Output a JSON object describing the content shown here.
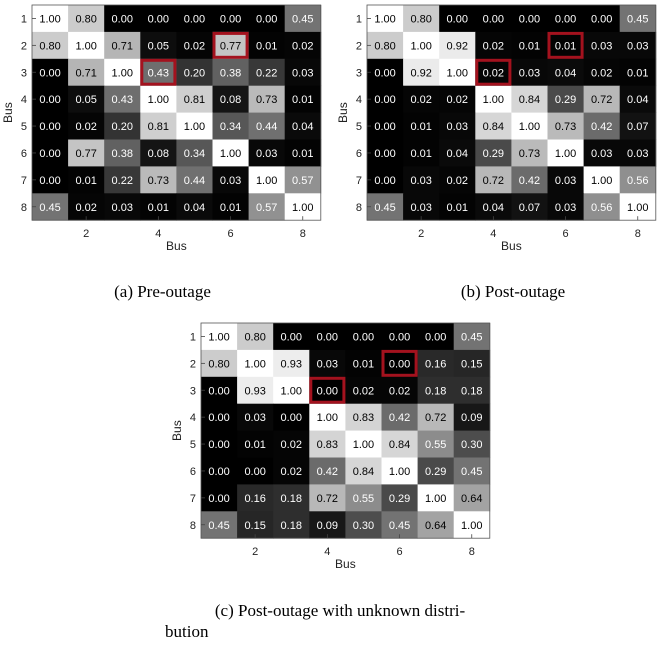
{
  "chart_data": [
    {
      "type": "heatmap",
      "caption": "(a) Pre-outage",
      "xlabel": "Bus",
      "ylabel": "Bus",
      "x_ticks": [
        "2",
        "4",
        "6",
        "8"
      ],
      "y_ticks": [
        "1",
        "2",
        "3",
        "4",
        "5",
        "6",
        "7",
        "8"
      ],
      "color_scale": "grayscale, 0.00 = black, 1.00 = white",
      "highlight_color": "#a3121e",
      "highlighted_cells": [
        {
          "row": 2,
          "col": 6
        },
        {
          "row": 3,
          "col": 4
        }
      ],
      "values": [
        [
          1.0,
          0.8,
          0.0,
          0.0,
          0.0,
          0.0,
          0.0,
          0.45
        ],
        [
          0.8,
          1.0,
          0.71,
          0.05,
          0.02,
          0.77,
          0.01,
          0.02
        ],
        [
          0.0,
          0.71,
          1.0,
          0.43,
          0.2,
          0.38,
          0.22,
          0.03
        ],
        [
          0.0,
          0.05,
          0.43,
          1.0,
          0.81,
          0.08,
          0.73,
          0.01
        ],
        [
          0.0,
          0.02,
          0.2,
          0.81,
          1.0,
          0.34,
          0.44,
          0.04
        ],
        [
          0.0,
          0.77,
          0.38,
          0.08,
          0.34,
          1.0,
          0.03,
          0.01
        ],
        [
          0.0,
          0.01,
          0.22,
          0.73,
          0.44,
          0.03,
          1.0,
          0.57
        ],
        [
          0.45,
          0.02,
          0.03,
          0.01,
          0.04,
          0.01,
          0.57,
          1.0
        ]
      ]
    },
    {
      "type": "heatmap",
      "caption": "(b) Post-outage",
      "xlabel": "Bus",
      "ylabel": "Bus",
      "x_ticks": [
        "2",
        "4",
        "6",
        "8"
      ],
      "y_ticks": [
        "1",
        "2",
        "3",
        "4",
        "5",
        "6",
        "7",
        "8"
      ],
      "color_scale": "grayscale, 0.00 = black, 1.00 = white",
      "highlight_color": "#a3121e",
      "highlighted_cells": [
        {
          "row": 2,
          "col": 6
        },
        {
          "row": 3,
          "col": 4
        }
      ],
      "values": [
        [
          1.0,
          0.8,
          0.0,
          0.0,
          0.0,
          0.0,
          0.0,
          0.45
        ],
        [
          0.8,
          1.0,
          0.92,
          0.02,
          0.01,
          0.01,
          0.03,
          0.03
        ],
        [
          0.0,
          0.92,
          1.0,
          0.02,
          0.03,
          0.04,
          0.02,
          0.01
        ],
        [
          0.0,
          0.02,
          0.02,
          1.0,
          0.84,
          0.29,
          0.72,
          0.04
        ],
        [
          0.0,
          0.01,
          0.03,
          0.84,
          1.0,
          0.73,
          0.42,
          0.07
        ],
        [
          0.0,
          0.01,
          0.04,
          0.29,
          0.73,
          1.0,
          0.03,
          0.03
        ],
        [
          0.0,
          0.03,
          0.02,
          0.72,
          0.42,
          0.03,
          1.0,
          0.56
        ],
        [
          0.45,
          0.03,
          0.01,
          0.04,
          0.07,
          0.03,
          0.56,
          1.0
        ]
      ]
    },
    {
      "type": "heatmap",
      "caption": "(c) Post-outage with unknown distri-bution",
      "caption_lines": [
        "(c) Post-outage with unknown distri-",
        "bution"
      ],
      "xlabel": "Bus",
      "ylabel": "Bus",
      "x_ticks": [
        "2",
        "4",
        "6",
        "8"
      ],
      "y_ticks": [
        "1",
        "2",
        "3",
        "4",
        "5",
        "6",
        "7",
        "8"
      ],
      "color_scale": "grayscale, 0.00 = black, 1.00 = white",
      "highlight_color": "#a3121e",
      "highlighted_cells": [
        {
          "row": 2,
          "col": 6
        },
        {
          "row": 3,
          "col": 4
        }
      ],
      "values": [
        [
          1.0,
          0.8,
          0.0,
          0.0,
          0.0,
          0.0,
          0.0,
          0.45
        ],
        [
          0.8,
          1.0,
          0.93,
          0.03,
          0.01,
          0.0,
          0.16,
          0.15
        ],
        [
          0.0,
          0.93,
          1.0,
          0.0,
          0.02,
          0.02,
          0.18,
          0.18
        ],
        [
          0.0,
          0.03,
          0.0,
          1.0,
          0.83,
          0.42,
          0.72,
          0.09
        ],
        [
          0.0,
          0.01,
          0.02,
          0.83,
          1.0,
          0.84,
          0.55,
          0.3
        ],
        [
          0.0,
          0.0,
          0.02,
          0.42,
          0.84,
          1.0,
          0.29,
          0.45
        ],
        [
          0.0,
          0.16,
          0.18,
          0.72,
          0.55,
          0.29,
          1.0,
          0.64
        ],
        [
          0.45,
          0.15,
          0.18,
          0.09,
          0.3,
          0.45,
          0.64,
          1.0
        ]
      ]
    }
  ]
}
